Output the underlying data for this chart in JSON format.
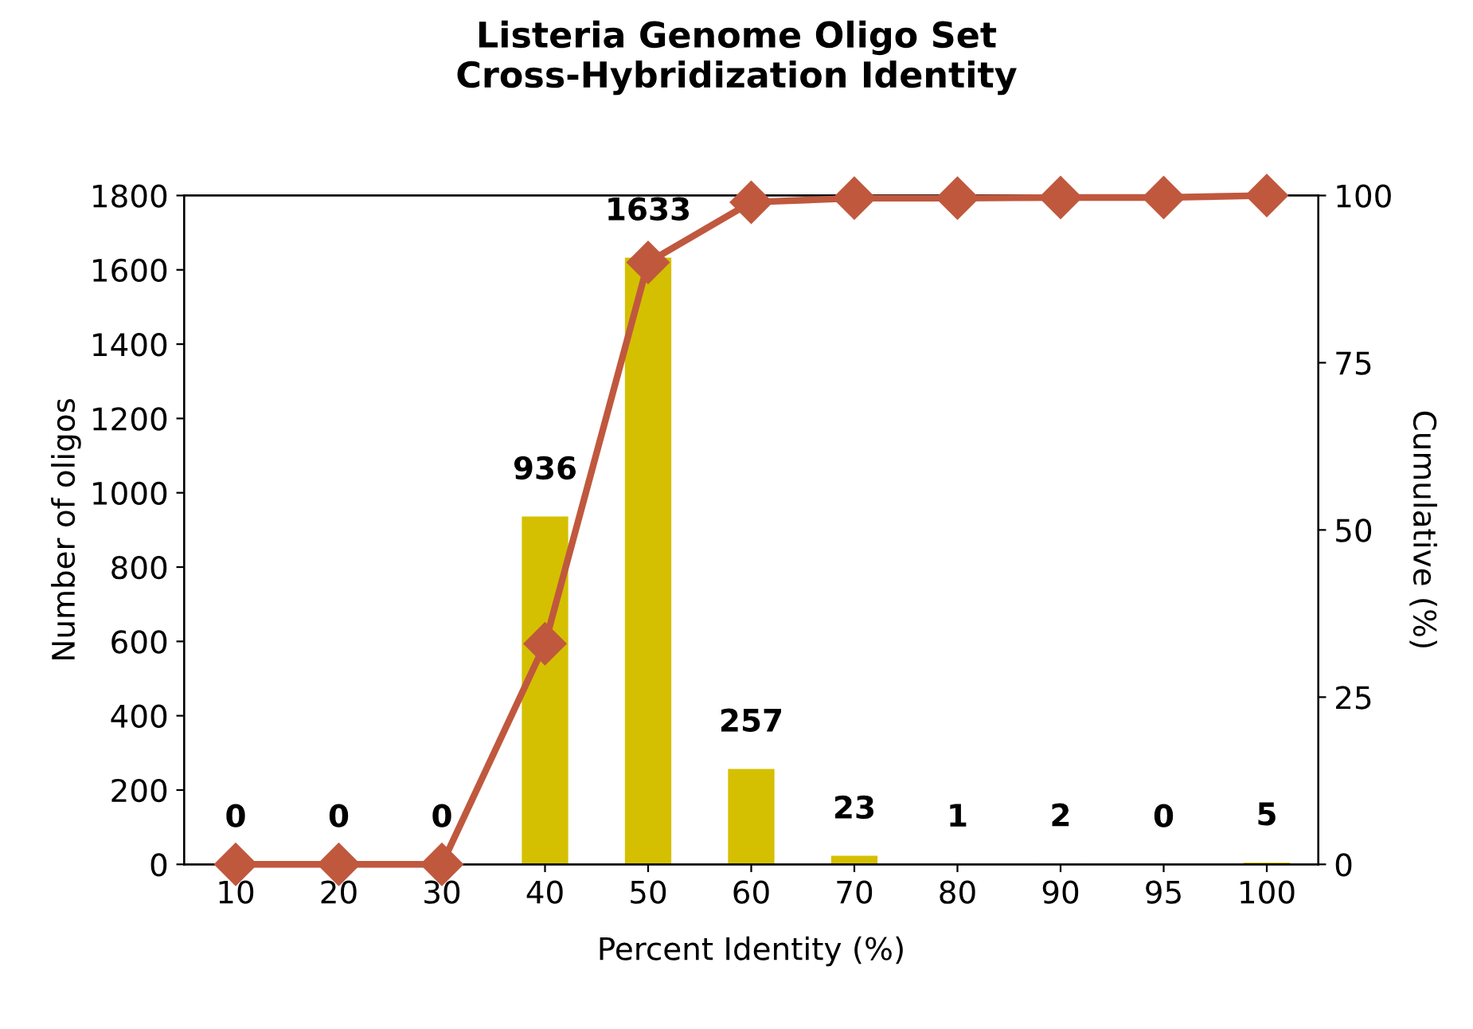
{
  "chart_data": {
    "type": "bar",
    "title": "Listeria Genome Oligo Set\nCross-Hybridization Identity",
    "xlabel": "Percent Identity (%)",
    "ylabel": "Number of oligos",
    "y2label": "Cumulative (%)",
    "categories": [
      "10",
      "20",
      "30",
      "40",
      "50",
      "60",
      "70",
      "80",
      "90",
      "95",
      "100"
    ],
    "series": [
      {
        "color": "#d4c000",
        "values": [
          0,
          0,
          0,
          936,
          1633,
          257,
          23,
          1,
          2,
          0,
          5
        ],
        "value_labels": [
          "0",
          "0",
          "0",
          "936",
          "1633",
          "257",
          "23",
          "1",
          "2",
          "0",
          "5"
        ]
      },
      {
        "type": "line",
        "axis": "y2",
        "color": "#c0583e",
        "marker": "diamond",
        "values": [
          0,
          0,
          0,
          33,
          90,
          99,
          99.6,
          99.6,
          99.7,
          99.7,
          100
        ]
      }
    ],
    "ylim": [
      0,
      1800
    ],
    "yticks": [
      0,
      200,
      400,
      600,
      800,
      1000,
      1200,
      1400,
      1600,
      1800
    ],
    "y2lim": [
      0,
      100
    ],
    "y2ticks": [
      0,
      25,
      50,
      75,
      100
    ],
    "grid": false,
    "legend": false
  }
}
